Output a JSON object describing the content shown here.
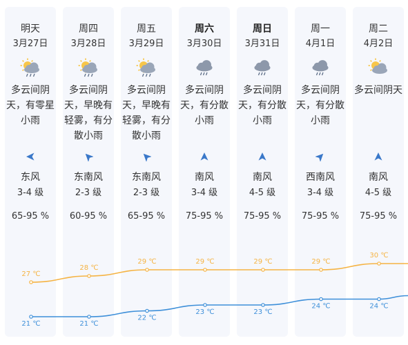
{
  "forecast": {
    "days": [
      {
        "day": "明天",
        "date": "3月27日",
        "bold": false,
        "icon": "partly-cloudy-drizzle-icon",
        "desc": [
          "多云间阴",
          "天，有零星",
          "小雨"
        ],
        "wind_dir": "东风",
        "wind_level": "3-4 级",
        "humidity": "65-95 %",
        "wind_angle": 270,
        "high": 27,
        "low": 21,
        "high_label": "27 ℃",
        "low_label": "21 ℃"
      },
      {
        "day": "周四",
        "date": "3月28日",
        "bold": false,
        "icon": "partly-cloudy-drizzle-icon",
        "desc": [
          "多云间阴",
          "天，早晚有",
          "轻雾，有分",
          "散小雨"
        ],
        "wind_dir": "东南风",
        "wind_level": "2-3 级",
        "humidity": "60-95 %",
        "wind_angle": 315,
        "high": 28,
        "low": 21,
        "high_label": "28 ℃",
        "low_label": "21 ℃"
      },
      {
        "day": "周五",
        "date": "3月29日",
        "bold": false,
        "icon": "partly-cloudy-drizzle-icon",
        "desc": [
          "多云间阴",
          "天，早晚有",
          "轻雾，有分",
          "散小雨"
        ],
        "wind_dir": "东南风",
        "wind_level": "2-3 级",
        "humidity": "65-95 %",
        "wind_angle": 315,
        "high": 29,
        "low": 22,
        "high_label": "29 ℃",
        "low_label": "22 ℃"
      },
      {
        "day": "周六",
        "date": "3月30日",
        "bold": true,
        "icon": "cloud-rain-icon",
        "desc": [
          "多云间阴",
          "天，有分散",
          "小雨"
        ],
        "wind_dir": "南风",
        "wind_level": "3-4 级",
        "humidity": "75-95 %",
        "wind_angle": 0,
        "high": 29,
        "low": 23,
        "high_label": "29 ℃",
        "low_label": "23 ℃"
      },
      {
        "day": "周日",
        "date": "3月31日",
        "bold": true,
        "icon": "cloud-rain-icon",
        "desc": [
          "多云间阴",
          "天，有分散",
          "小雨"
        ],
        "wind_dir": "南风",
        "wind_level": "4-5 级",
        "humidity": "75-95 %",
        "wind_angle": 0,
        "high": 29,
        "low": 23,
        "high_label": "29 ℃",
        "low_label": "23 ℃"
      },
      {
        "day": "周一",
        "date": "4月1日",
        "bold": false,
        "icon": "cloud-rain-icon",
        "desc": [
          "多云间阴",
          "天，有分散",
          "小雨"
        ],
        "wind_dir": "西南风",
        "wind_level": "3-4 级",
        "humidity": "75-95 %",
        "wind_angle": 45,
        "high": 29,
        "low": 24,
        "high_label": "29 ℃",
        "low_label": "24 ℃"
      },
      {
        "day": "周二",
        "date": "4月2日",
        "bold": false,
        "icon": "partly-cloudy-icon",
        "desc": [
          "多云间阴天"
        ],
        "wind_dir": "南风",
        "wind_level": "4-5 级",
        "humidity": "75-95 %",
        "wind_angle": 0,
        "high": 30,
        "low": 24,
        "high_label": "30 ℃",
        "low_label": "24 ℃"
      }
    ]
  },
  "colors": {
    "high_line": "#f5b342",
    "low_line": "#3d8fd9",
    "card_bg": "#f5f7fc",
    "sun": "#f7c64a",
    "cloud": "#9aa6b8",
    "arrow": "#3a78c9"
  }
}
